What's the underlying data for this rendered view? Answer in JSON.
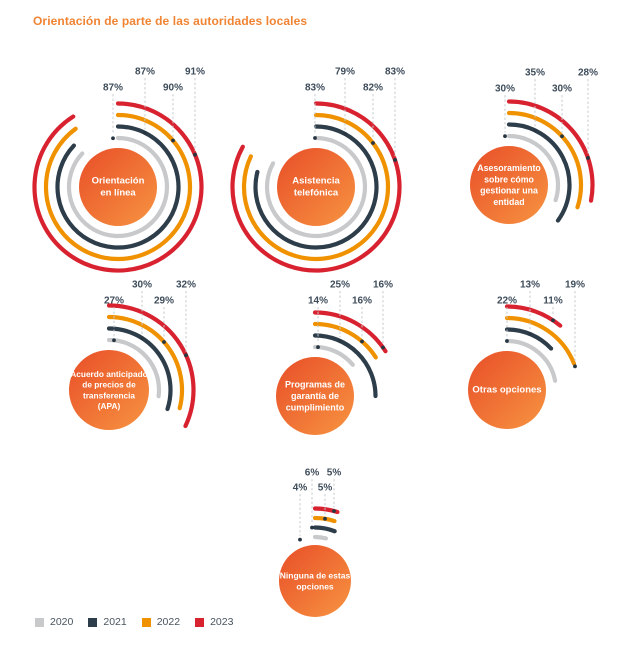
{
  "title": "Orientación de parte de las autoridades locales",
  "legend": [
    {
      "year": "2020",
      "color": "#c7c9cb"
    },
    {
      "year": "2021",
      "color": "#2e3d4a"
    },
    {
      "year": "2022",
      "color": "#f09200"
    },
    {
      "year": "2023",
      "color": "#d8222f"
    }
  ],
  "chart_data": {
    "type": "radial-gauge-small-multiples",
    "title": "Orientación de parte de las autoridades locales",
    "unit": "%",
    "years": [
      "2020",
      "2021",
      "2022",
      "2023"
    ],
    "colors": {
      "2020": "#c7c9cb",
      "2021": "#2e3d4a",
      "2022": "#f09200",
      "2023": "#d8222f"
    },
    "ring_order_inner_to_outer": [
      "2020",
      "2021",
      "2022",
      "2023"
    ],
    "arc_start": "12 o'clock, clockwise, sweep = value/100 * 360deg",
    "legend_position": "bottom-left",
    "charts": [
      {
        "label": "Orientación en línea",
        "values": {
          "2020": 87,
          "2021": 87,
          "2022": 90,
          "2023": 91
        },
        "label_year_order": [
          "2020",
          "2021",
          "2022",
          "2023"
        ]
      },
      {
        "label": "Asistencia telefónica",
        "values": {
          "2020": 83,
          "2021": 79,
          "2022": 82,
          "2023": 83
        },
        "label_year_order": [
          "2020",
          "2021",
          "2022",
          "2023"
        ]
      },
      {
        "label": "Asesoramiento sobre cómo gestionar una entidad",
        "values": {
          "2020": 30,
          "2021": 35,
          "2022": 30,
          "2023": 28
        },
        "label_year_order": [
          "2020",
          "2021",
          "2022",
          "2023"
        ]
      },
      {
        "label": "Acuerdo anticipado de precios de transferencia (APA)",
        "values": {
          "2020": 27,
          "2021": 30,
          "2022": 29,
          "2023": 32
        },
        "label_year_order": [
          "2020",
          "2021",
          "2022",
          "2023"
        ]
      },
      {
        "label": "Programas de garantía de cumplimiento",
        "values": {
          "2020": 14,
          "2021": 25,
          "2022": 16,
          "2023": 16
        },
        "label_year_order": [
          "2020",
          "2021",
          "2022",
          "2023"
        ]
      },
      {
        "label": "Otras opciones",
        "values": {
          "2020": 22,
          "2021": 13,
          "2022": 19,
          "2023": 11
        },
        "label_year_order": [
          "2020",
          "2021",
          "2023",
          "2022"
        ]
      },
      {
        "label": "Ninguna de estas opciones",
        "values": {
          "2020": 4,
          "2021": 6,
          "2022": 5,
          "2023": 5
        },
        "label_year_order": [
          "2020",
          "2021",
          "2022",
          "2023"
        ]
      }
    ],
    "center_circle_gradient": [
      "#e84e28",
      "#f79441"
    ],
    "percent_label_color": "#3e4c5a"
  }
}
